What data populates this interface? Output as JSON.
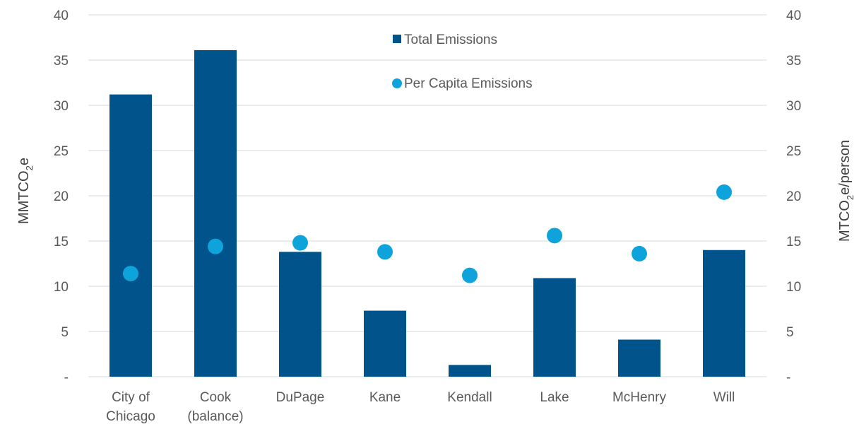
{
  "chart_data": {
    "type": "bar",
    "categories": [
      "City of Chicago",
      "Cook (balance)",
      "DuPage",
      "Kane",
      "Kendall",
      "Lake",
      "McHenry",
      "Will"
    ],
    "category_lines": [
      [
        "City of",
        "Chicago"
      ],
      [
        "Cook",
        "(balance)"
      ],
      [
        "DuPage"
      ],
      [
        "Kane"
      ],
      [
        "Kendall"
      ],
      [
        "Lake"
      ],
      [
        "McHenry"
      ],
      [
        "Will"
      ]
    ],
    "series": [
      {
        "name": "Total Emissions",
        "type": "bar",
        "axis": "left",
        "color": "#00548B",
        "values": [
          31.2,
          36.1,
          13.8,
          7.3,
          1.3,
          10.9,
          4.1,
          14.0
        ]
      },
      {
        "name": "Per Capita Emissions",
        "type": "scatter",
        "axis": "right",
        "color": "#0FA3DB",
        "values": [
          11.4,
          14.4,
          14.8,
          13.8,
          11.2,
          15.6,
          13.6,
          20.4
        ]
      }
    ],
    "ylabel": "MMTCO2e",
    "ylabel_main": "MMTCO",
    "ylabel_sub": "2",
    "ylabel_tail": "e",
    "y2label": "MTCO2e/person",
    "y2label_main": "MTCO",
    "y2label_sub": "2",
    "y2label_tail": "e/person",
    "ylim": [
      0,
      40
    ],
    "y2lim": [
      0,
      40
    ],
    "yticks": [
      "-",
      "5",
      "10",
      "15",
      "20",
      "25",
      "30",
      "35",
      "40"
    ],
    "y2ticks": [
      "-",
      "5",
      "10",
      "15",
      "20",
      "25",
      "30",
      "35",
      "40"
    ],
    "grid": true,
    "legend_position": "top-center"
  }
}
